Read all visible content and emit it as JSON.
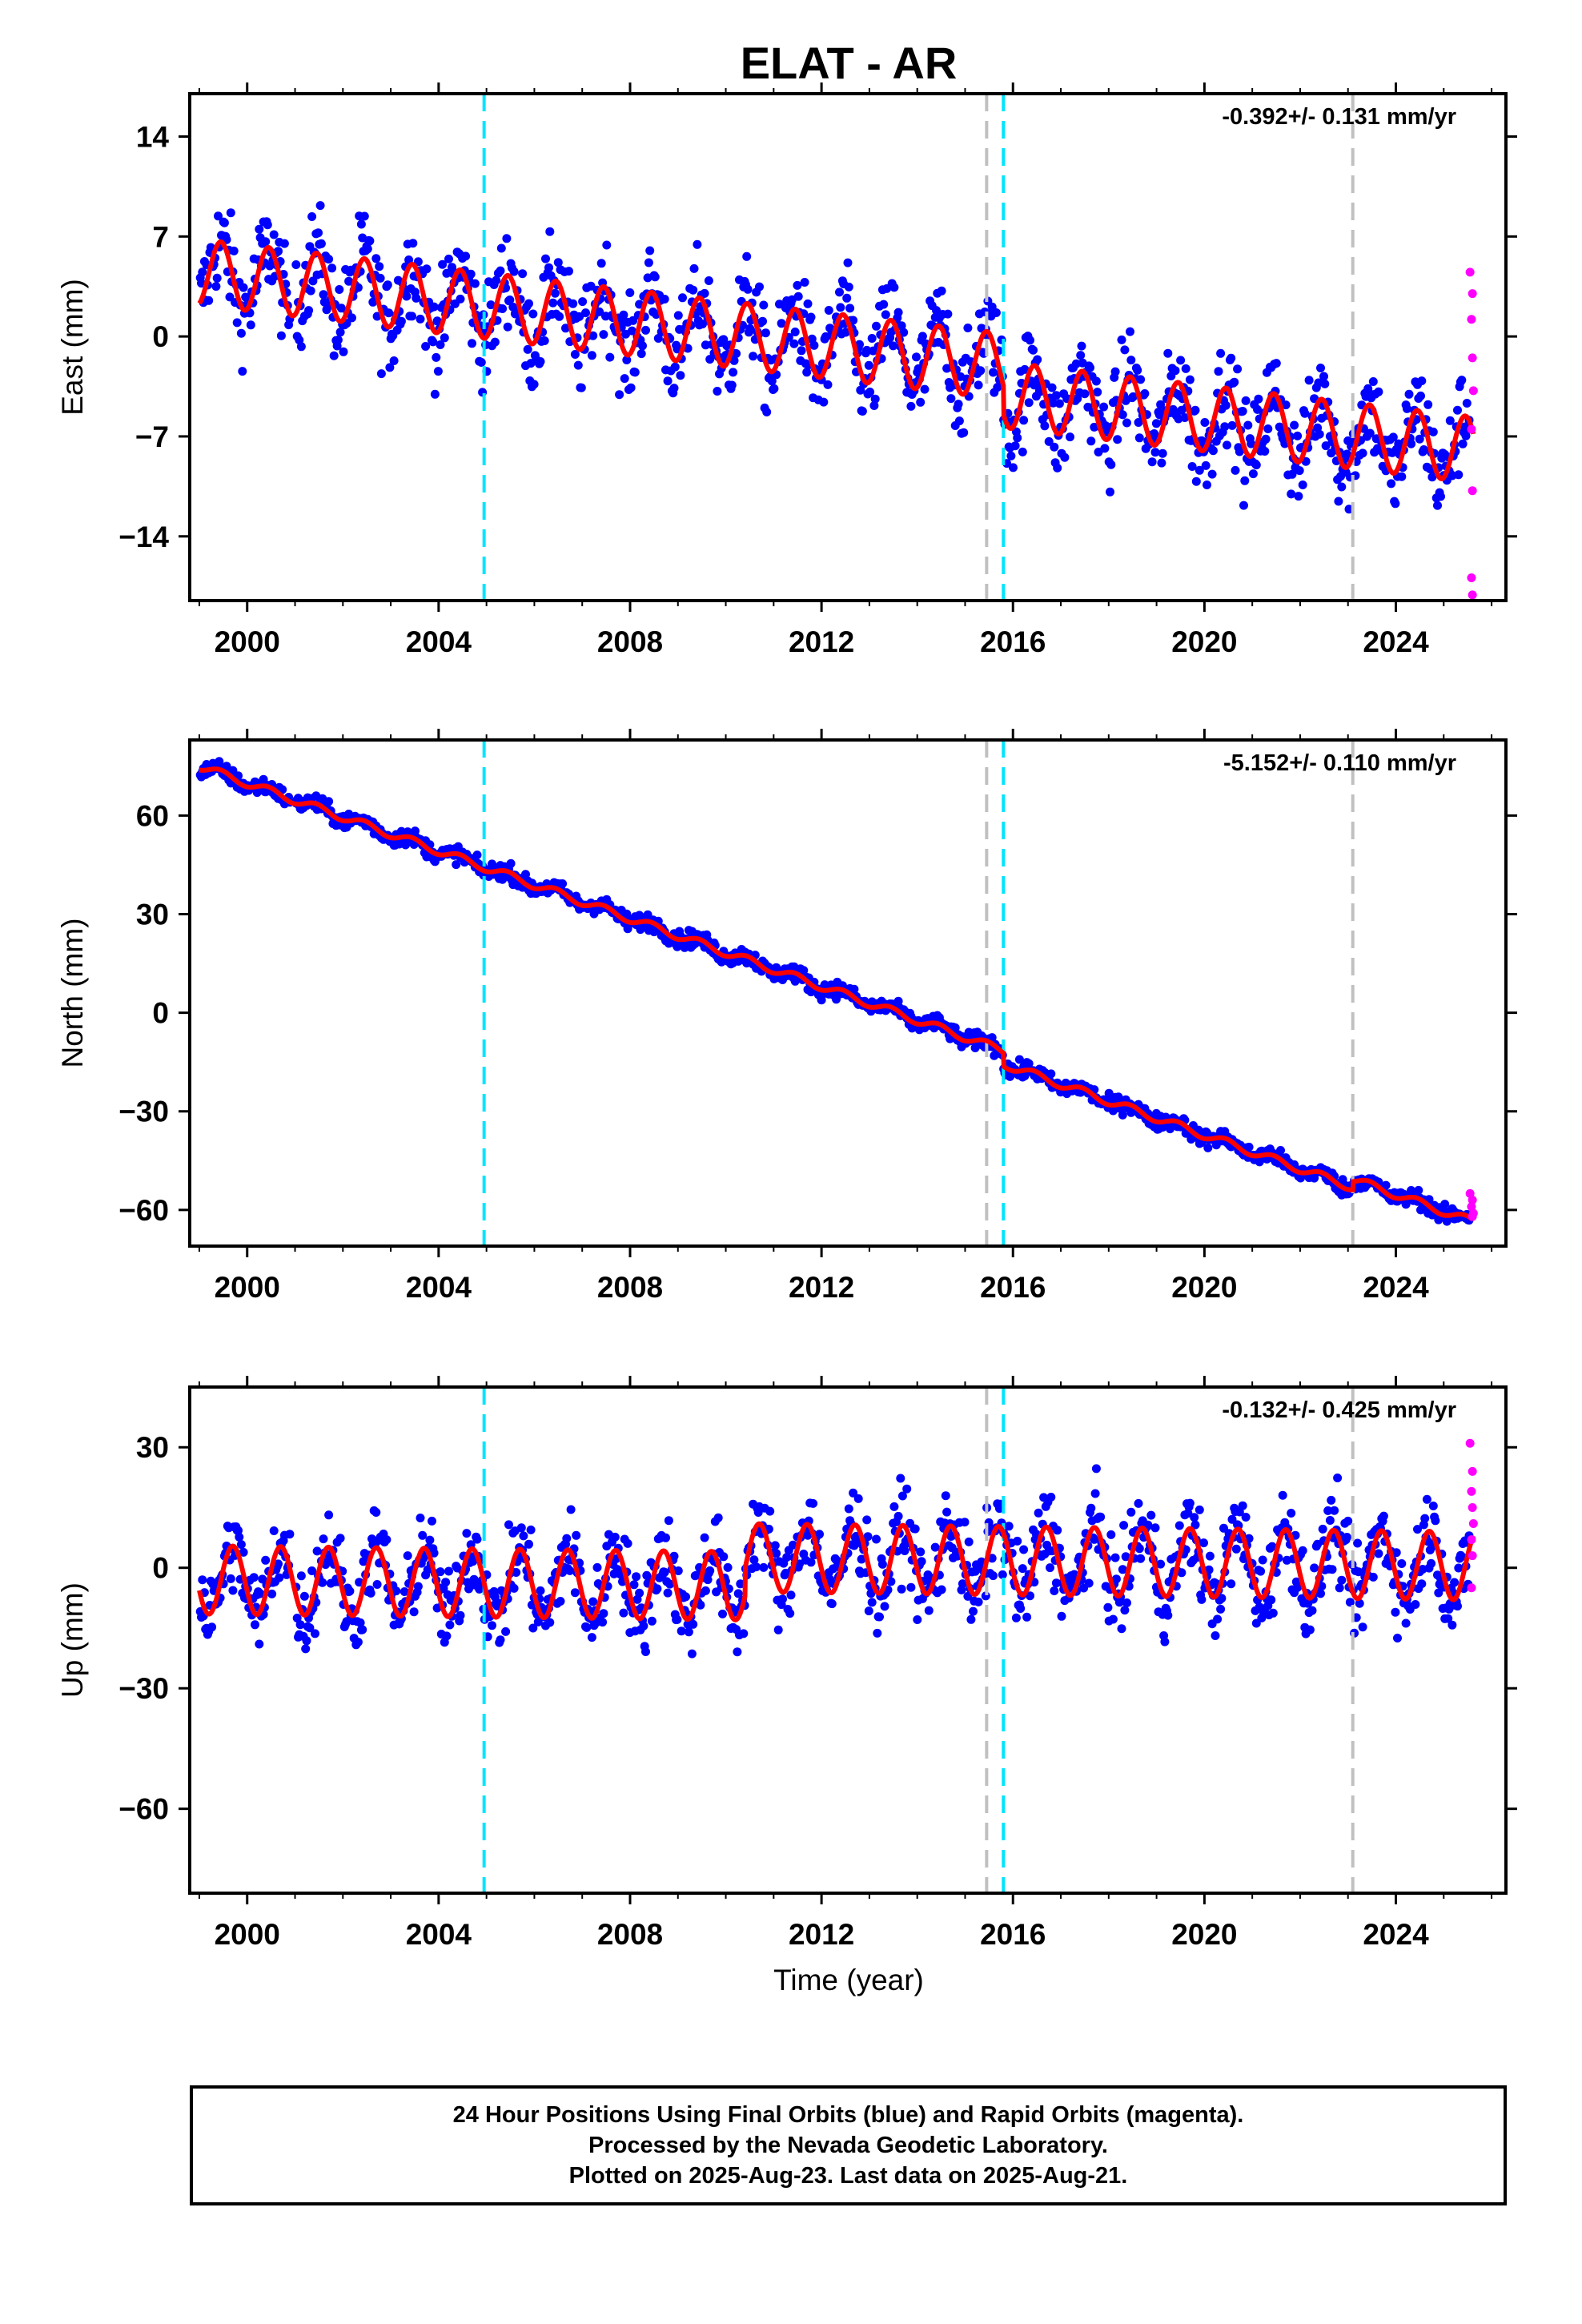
{
  "chart_data": [
    {
      "type": "scatter",
      "title": "ELAT - AR",
      "ylabel": "East (mm)",
      "rate": "-0.392+/- 0.131 mm/yr",
      "xlim": [
        1998.8,
        2026.3
      ],
      "ylim": [
        -18.5,
        17
      ],
      "yticks": [
        14,
        7,
        0,
        -7,
        -14
      ],
      "yticklabels": [
        "14",
        "7",
        "0",
        "−7",
        "−14"
      ],
      "xticks": [
        2000,
        2004,
        2008,
        2012,
        2016,
        2020,
        2024
      ],
      "model": {
        "offset": 4.5,
        "trend": -0.392,
        "amplitude": 2.3,
        "phase": 0.2,
        "jumps": [
          {
            "year": 2015.8,
            "size": -2.0
          }
        ]
      },
      "scatter_spread": 2.4,
      "rapid_points": [
        {
          "x": 2025.55,
          "y": 4.5
        },
        {
          "x": 2025.6,
          "y": 3.0
        },
        {
          "x": 2025.58,
          "y": 1.2
        },
        {
          "x": 2025.6,
          "y": -1.5
        },
        {
          "x": 2025.62,
          "y": -3.8
        },
        {
          "x": 2025.58,
          "y": -6.5
        },
        {
          "x": 2025.6,
          "y": -10.8
        },
        {
          "x": 2025.58,
          "y": -16.9
        },
        {
          "x": 2025.6,
          "y": -18.1
        }
      ]
    },
    {
      "type": "scatter",
      "ylabel": "North (mm)",
      "rate": "-5.152+/- 0.110 mm/yr",
      "xlim": [
        1998.8,
        2026.3
      ],
      "ylim": [
        -71,
        83
      ],
      "yticks": [
        60,
        30,
        0,
        -30,
        -60
      ],
      "yticklabels": [
        "60",
        "30",
        "0",
        "−30",
        "−60"
      ],
      "xticks": [
        2000,
        2004,
        2008,
        2012,
        2016,
        2020,
        2024
      ],
      "model": {
        "offset": 75,
        "trend": -5.152,
        "amplitude": 1.2,
        "phase": 0.2,
        "jumps": [
          {
            "year": 2015.8,
            "size": -4.0
          },
          {
            "year": 2023.1,
            "size": 2.5
          }
        ]
      },
      "scatter_spread": 1.8,
      "rapid_points": [
        {
          "x": 2025.55,
          "y": -55
        },
        {
          "x": 2025.6,
          "y": -57
        },
        {
          "x": 2025.58,
          "y": -59
        },
        {
          "x": 2025.62,
          "y": -61
        },
        {
          "x": 2025.6,
          "y": -62
        }
      ]
    },
    {
      "type": "scatter",
      "ylabel": "Up (mm)",
      "xlabel": "Time (year)",
      "rate": "-0.132+/- 0.425 mm/yr",
      "xlim": [
        1998.8,
        2026.3
      ],
      "ylim": [
        -81,
        45
      ],
      "yticks": [
        30,
        0,
        -30,
        -60
      ],
      "yticklabels": [
        "30",
        "0",
        "−30",
        "−60"
      ],
      "xticks": [
        2000,
        2004,
        2008,
        2012,
        2016,
        2020,
        2024
      ],
      "model": {
        "offset": -3,
        "trend": -0.132,
        "amplitude": 8.5,
        "phase": 0.45,
        "jumps": [
          {
            "year": 2010.4,
            "size": 7.0
          }
        ]
      },
      "scatter_spread": 7.5,
      "rapid_points": [
        {
          "x": 2025.55,
          "y": 31
        },
        {
          "x": 2025.6,
          "y": 24
        },
        {
          "x": 2025.58,
          "y": 19
        },
        {
          "x": 2025.6,
          "y": 15
        },
        {
          "x": 2025.62,
          "y": 11
        },
        {
          "x": 2025.58,
          "y": 7
        },
        {
          "x": 2025.6,
          "y": 3
        },
        {
          "x": 2025.58,
          "y": -5
        }
      ]
    }
  ],
  "event_lines": [
    {
      "year": 2004.95,
      "color": "#00e5ff"
    },
    {
      "year": 2015.45,
      "color": "#c0c0c0"
    },
    {
      "year": 2015.8,
      "color": "#00e5ff"
    },
    {
      "year": 2023.1,
      "color": "#c0c0c0"
    }
  ],
  "colors": {
    "final": "#0000ff",
    "rapid": "#ff00ff",
    "model": "#ff0000"
  },
  "footer": {
    "line1": "24 Hour Positions Using Final Orbits (blue) and Rapid Orbits (magenta).",
    "line2": "Processed by the Nevada Geodetic Laboratory.",
    "line3": "Plotted on 2025-Aug-23. Last data on 2025-Aug-21."
  }
}
